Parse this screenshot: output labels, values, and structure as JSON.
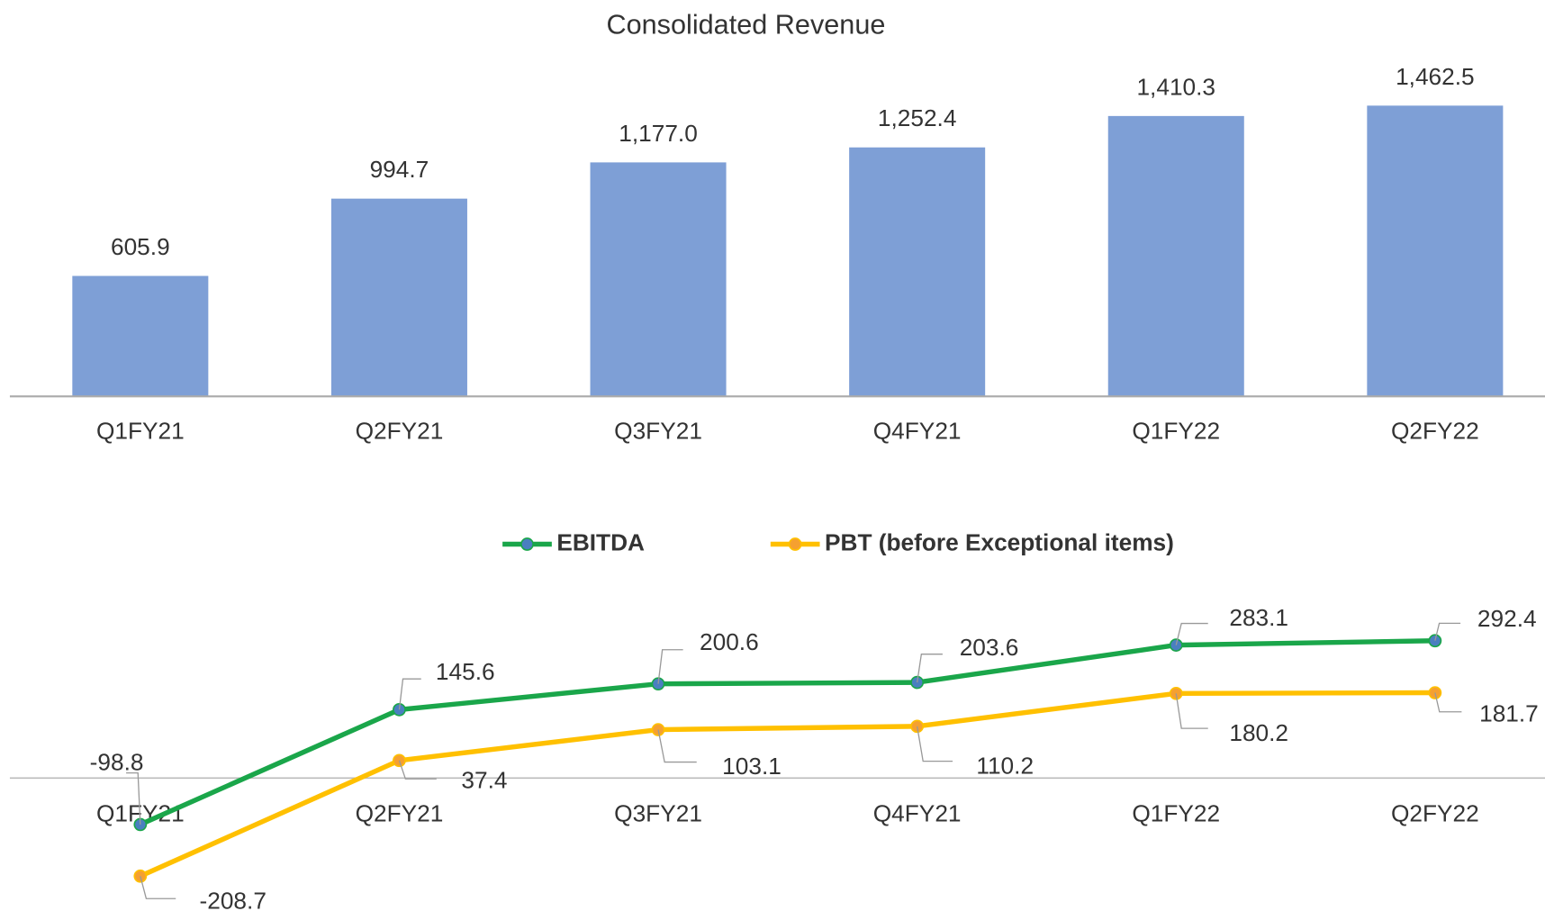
{
  "chart_data": [
    {
      "type": "bar",
      "title": "Consolidated Revenue",
      "categories": [
        "Q1FY21",
        "Q2FY21",
        "Q3FY21",
        "Q4FY21",
        "Q1FY22",
        "Q2FY22"
      ],
      "values": [
        605.9,
        994.7,
        1177.0,
        1252.4,
        1410.3,
        1462.5
      ],
      "value_labels": [
        "605.9",
        "994.7",
        "1,177.0",
        "1,252.4",
        "1,410.3",
        "1,462.5"
      ],
      "color": "#7e9fd6",
      "ylim": [
        0,
        1600
      ]
    },
    {
      "type": "line",
      "categories": [
        "Q1FY21",
        "Q2FY21",
        "Q3FY21",
        "Q4FY21",
        "Q1FY22",
        "Q2FY22"
      ],
      "series": [
        {
          "name": "EBITDA",
          "color": "#1aa64a",
          "marker_color": "#4a7fc0",
          "values": [
            -98.8,
            145.6,
            200.6,
            203.6,
            283.1,
            292.4
          ]
        },
        {
          "name": "PBT (before Exceptional items)",
          "color": "#ffc000",
          "marker_color": "#f5a030",
          "values": [
            -208.7,
            37.4,
            103.1,
            110.2,
            180.2,
            181.7
          ]
        }
      ],
      "ylim": [
        -300,
        400
      ]
    }
  ]
}
